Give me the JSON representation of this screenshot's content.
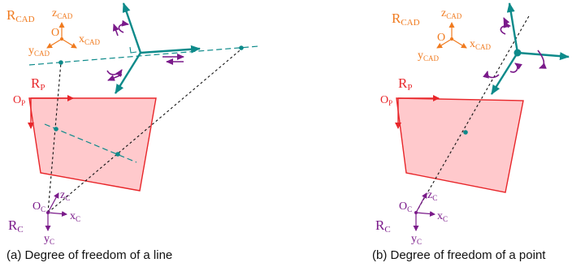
{
  "colors": {
    "cad": "#f07a1e",
    "image": "#e8262a",
    "image_fill": "#ffc9cc",
    "camera": "#7a1a8a",
    "dof": "#0d8a8a",
    "rotation": "#7a1a8a",
    "ray": "#111111"
  },
  "frames": {
    "cad": {
      "R": "R",
      "sub": "CAD",
      "origin": "O",
      "x": "x",
      "y": "y",
      "z": "z",
      "axis_sub": "CAD"
    },
    "image": {
      "R": "R",
      "sub": "P",
      "origin": "O",
      "origin_sub": "P"
    },
    "camera": {
      "R": "R",
      "sub": "C",
      "origin": "O",
      "x": "x",
      "y": "y",
      "z": "z",
      "axis_sub": "C"
    }
  },
  "captions": {
    "a": "(a) Degree of freedom of a line",
    "b": "(b) Degree of freedom of a point"
  }
}
